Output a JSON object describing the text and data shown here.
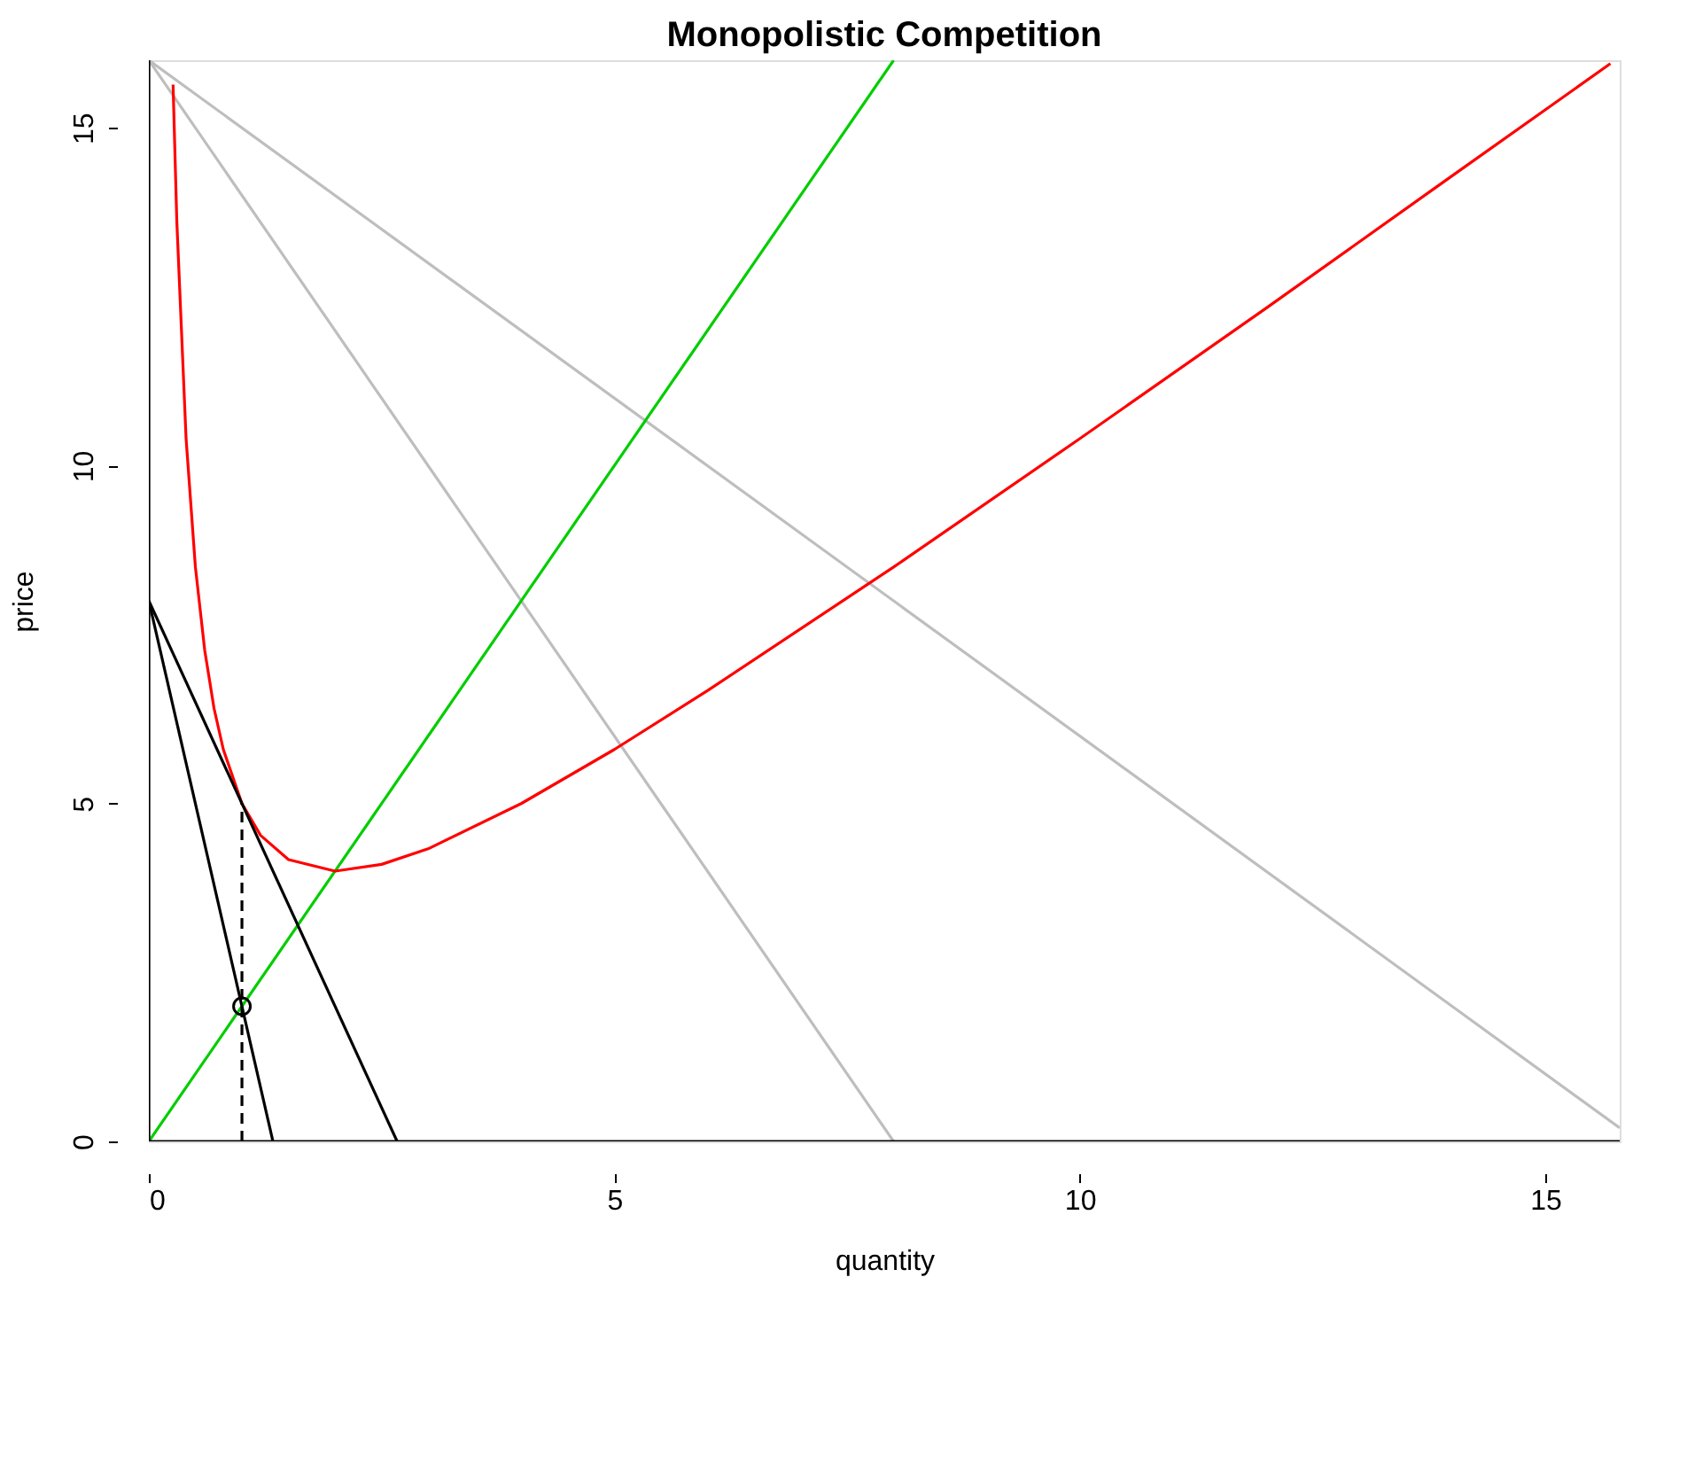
{
  "chart_data": {
    "type": "line",
    "title": "Monopolistic Competition",
    "xlabel": "quantity",
    "ylabel": "price",
    "xlim": [
      0,
      15.8
    ],
    "ylim": [
      0,
      16
    ],
    "xticks": [
      0,
      5,
      10,
      15
    ],
    "yticks": [
      0,
      5,
      10,
      15
    ],
    "grid": false,
    "series": [
      {
        "color": "#bebebe",
        "x": [
          0,
          15.8
        ],
        "values": [
          16,
          0.2
        ]
      },
      {
        "color": "#bebebe",
        "x": [
          0,
          8
        ],
        "values": [
          16,
          0
        ]
      },
      {
        "color": "#00cd00",
        "x": [
          0,
          8
        ],
        "values": [
          0,
          16
        ]
      },
      {
        "color": "#ff0000",
        "x": [
          0.26,
          0.3,
          0.4,
          0.5,
          0.6,
          0.7,
          0.8,
          1,
          1.2,
          1.5,
          2,
          2.5,
          3,
          4,
          5,
          6,
          8,
          10,
          12,
          14,
          15.7
        ],
        "values": [
          15.64,
          13.63,
          10.4,
          8.5,
          7.27,
          6.41,
          5.8,
          5,
          4.53,
          4.17,
          4,
          4.1,
          4.33,
          5,
          5.8,
          6.67,
          8.5,
          10.4,
          12.33,
          14.29,
          15.95
        ]
      },
      {
        "color": "#000000",
        "x": [
          0,
          2.667
        ],
        "values": [
          8,
          0
        ]
      },
      {
        "color": "#000000",
        "x": [
          0,
          1.333
        ],
        "values": [
          8,
          0
        ]
      },
      {
        "color": "#000000",
        "x": [
          1,
          1
        ],
        "values": [
          0,
          5
        ],
        "line_style": "dashed"
      },
      {
        "type": "scatter",
        "color": "#000000",
        "x": [
          1
        ],
        "values": [
          2
        ],
        "marker": "circle"
      },
      {
        "color": "#000000",
        "x": [
          0,
          0
        ],
        "values": [
          0,
          16
        ]
      },
      {
        "color": "#000000",
        "x": [
          0,
          15.8
        ],
        "values": [
          0,
          0
        ]
      }
    ]
  }
}
